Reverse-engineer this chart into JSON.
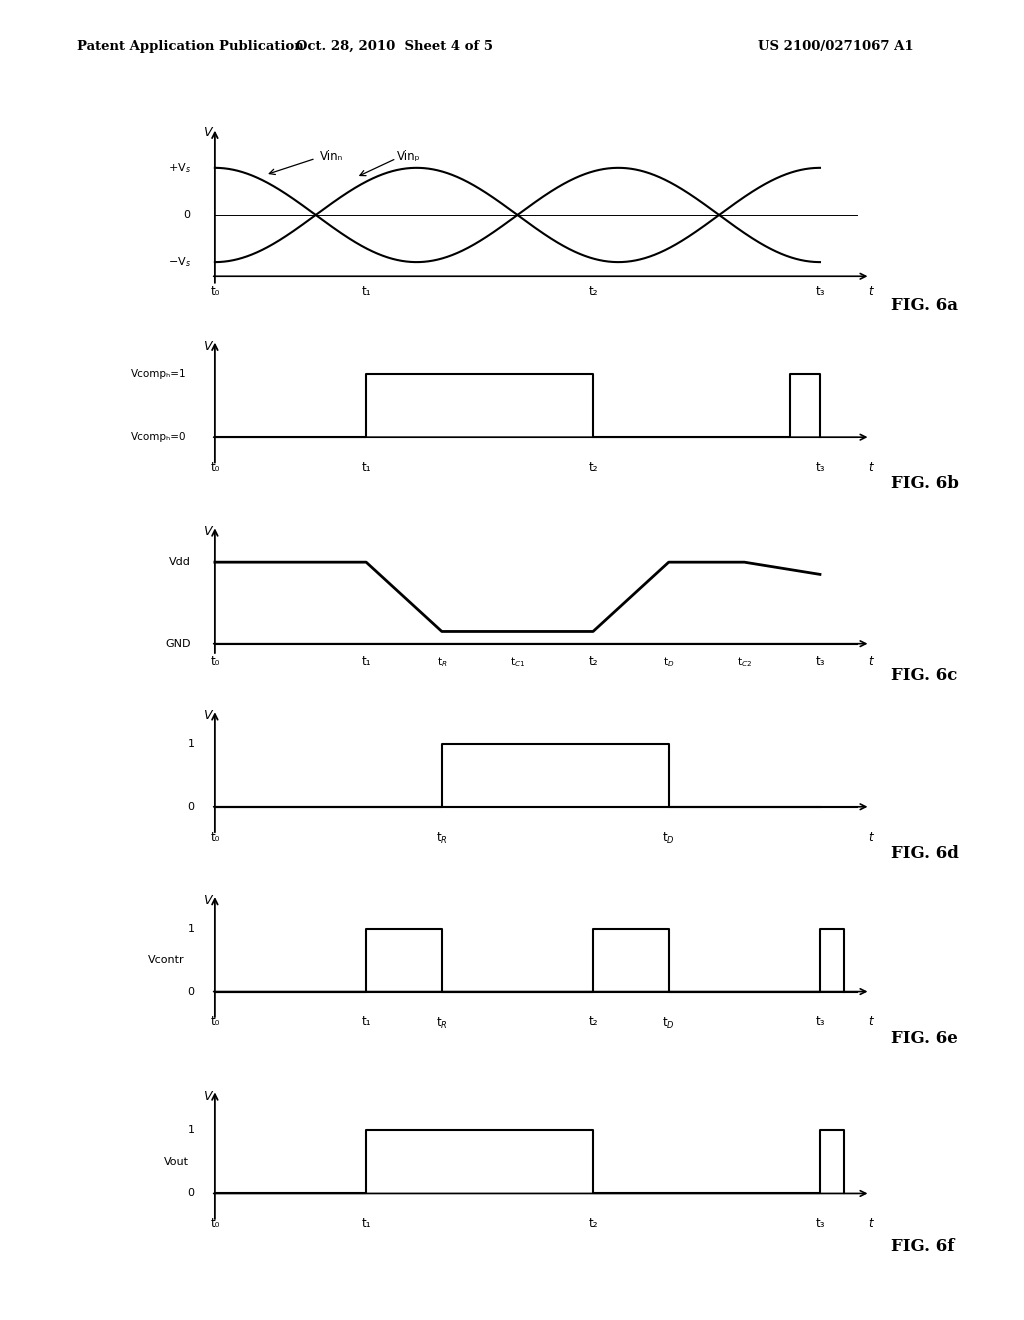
{
  "header_left": "Patent Application Publication",
  "header_mid": "Oct. 28, 2010  Sheet 4 of 5",
  "header_right": "US 2100/0271067 A1",
  "background_color": "#ffffff",
  "line_color": "#000000",
  "fig6a_label": "FIG. 6a",
  "fig6b_label": "FIG. 6b",
  "fig6c_label": "FIG. 6c",
  "fig6d_label": "FIG. 6d",
  "fig6e_label": "FIG. 6e",
  "fig6f_label": "FIG. 6f",
  "t0": 0.0,
  "t1": 0.75,
  "tR": 1.125,
  "tC1": 1.5,
  "t2": 1.875,
  "tD": 2.25,
  "tC2": 2.625,
  "t3": 3.0
}
